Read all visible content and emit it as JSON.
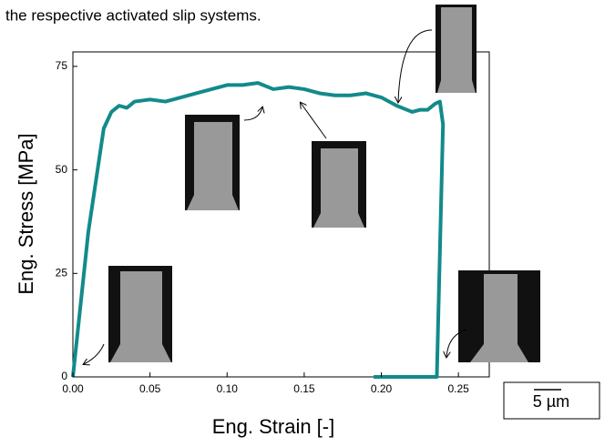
{
  "caption": "the respective activated slip systems.",
  "scale_bar": "5 µm",
  "chart_data": {
    "type": "line",
    "x_label": "Eng. Strain [-]",
    "y_label": "Eng. Stress [MPa]",
    "xlim": [
      0,
      0.27
    ],
    "ylim": [
      0,
      78.5
    ],
    "xticks": [
      {
        "value": 0,
        "label": "0.00"
      },
      {
        "value": 0.05,
        "label": "0.05"
      },
      {
        "value": 0.1,
        "label": "0.10"
      },
      {
        "value": 0.15,
        "label": "0.15"
      },
      {
        "value": 0.2,
        "label": "0.20"
      },
      {
        "value": 0.25,
        "label": "0.25"
      }
    ],
    "yticks": [
      0,
      25,
      50,
      75
    ],
    "series": [
      {
        "color": "#138a8a",
        "x": [
          0,
          0.01,
          0.02,
          0.025,
          0.03,
          0.035,
          0.04,
          0.05,
          0.06,
          0.07,
          0.08,
          0.09,
          0.1,
          0.11,
          0.12,
          0.13,
          0.14,
          0.15,
          0.16,
          0.17,
          0.18,
          0.19,
          0.2,
          0.21,
          0.22,
          0.225,
          0.23,
          0.235,
          0.238,
          0.24,
          0.236,
          0.195
        ],
        "values": [
          0,
          35,
          60,
          64,
          65.5,
          65,
          66.5,
          67,
          66.5,
          67.5,
          68.5,
          69.5,
          70.5,
          70.5,
          71,
          69.5,
          70,
          69.5,
          68.5,
          68,
          68,
          68.5,
          67.5,
          65.5,
          64,
          64.5,
          64.5,
          66,
          66.5,
          61,
          0,
          0
        ]
      }
    ]
  }
}
